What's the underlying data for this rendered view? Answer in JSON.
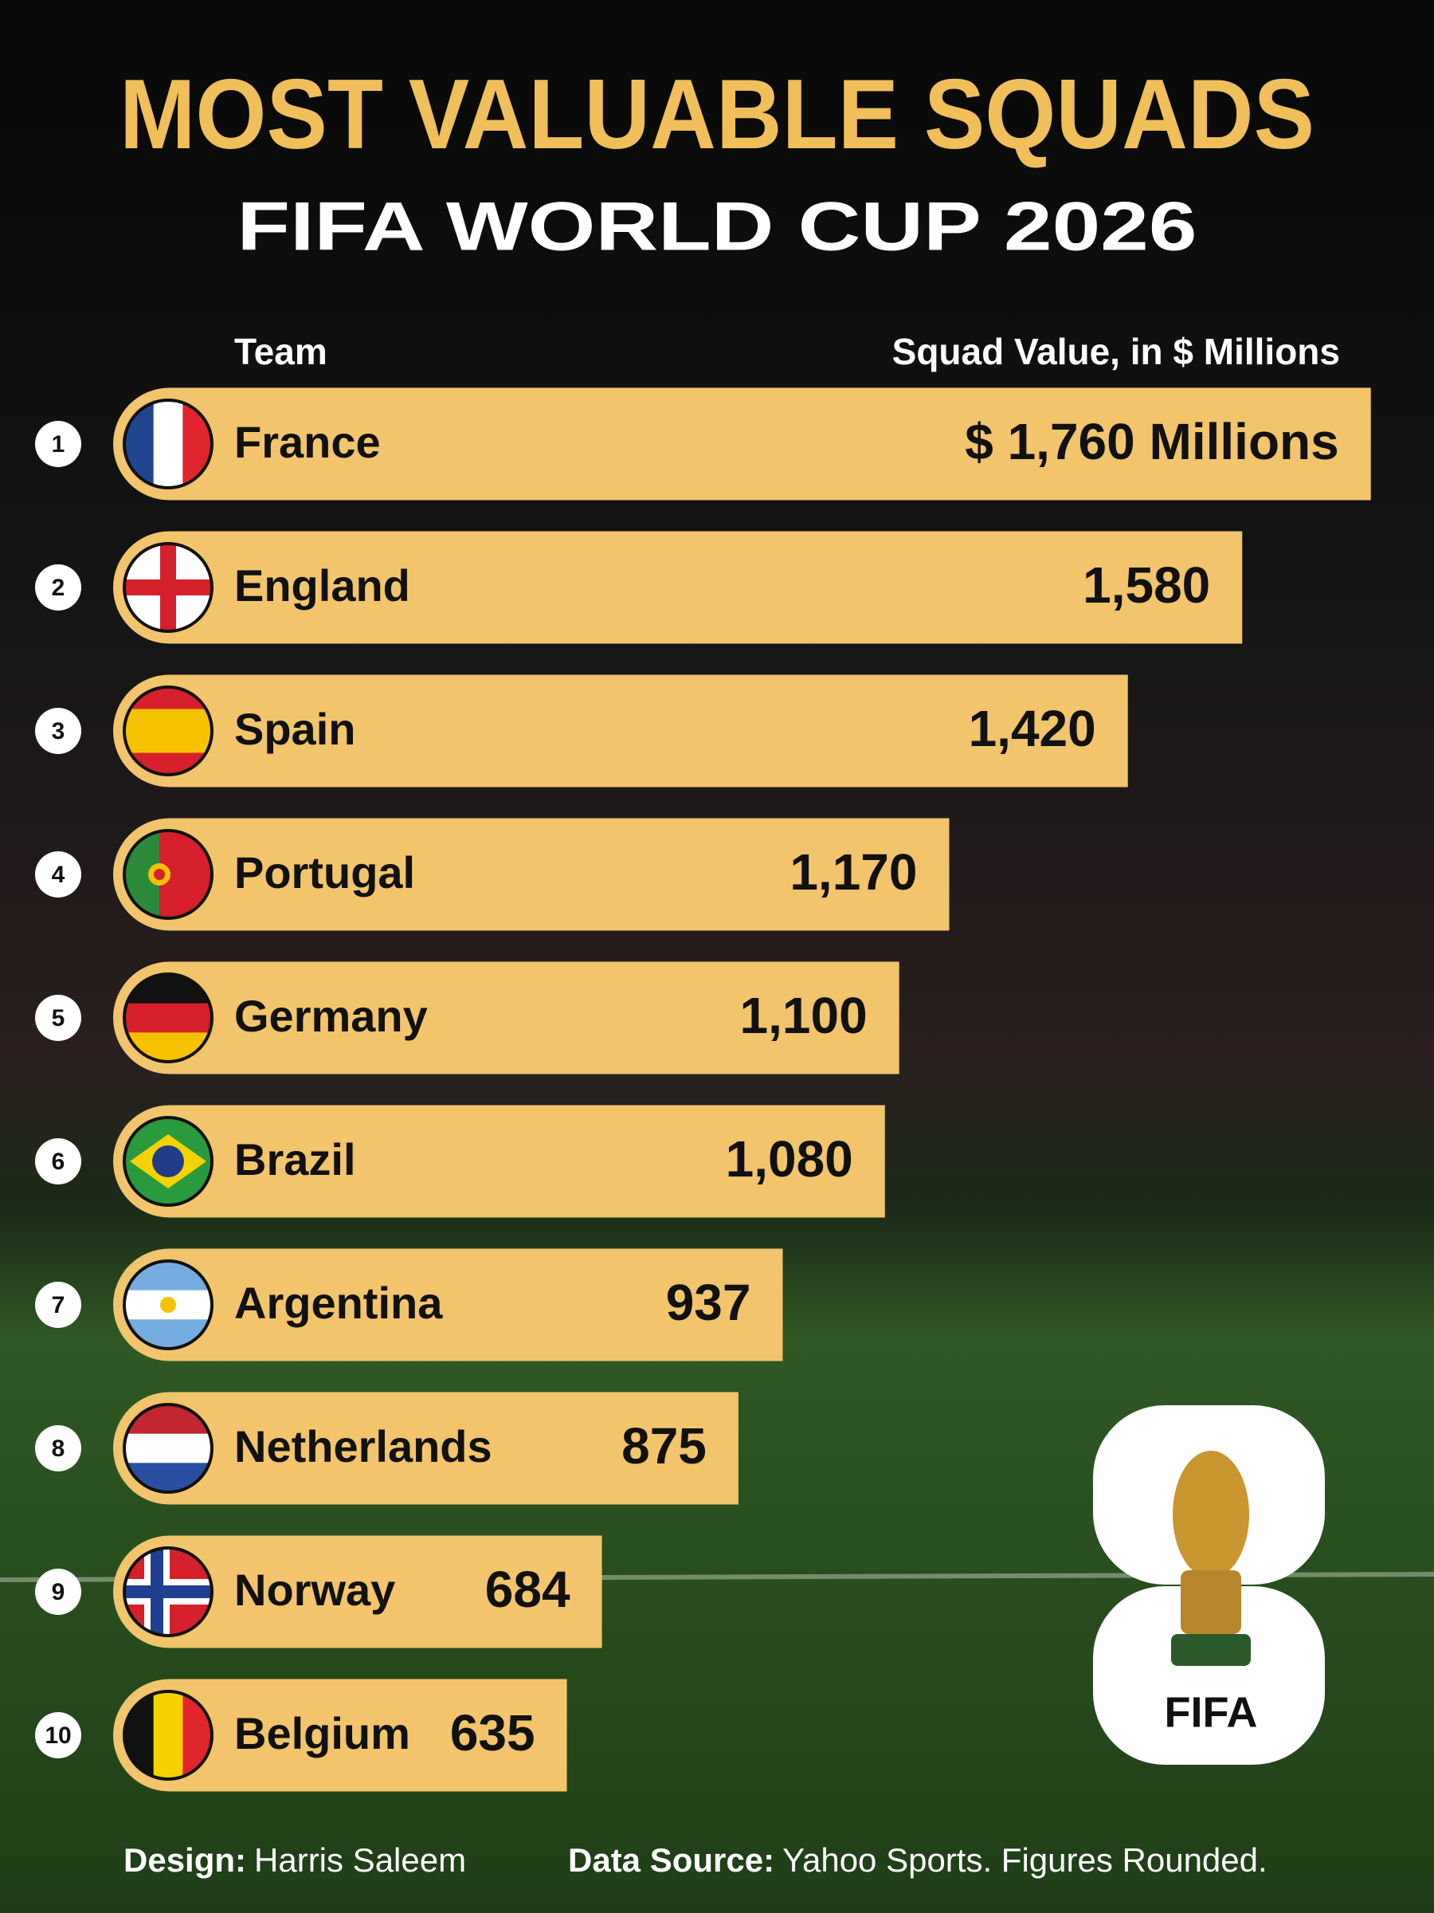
{
  "chart_data": {
    "type": "bar",
    "title": "MOST VALUABLE SQUADS",
    "subtitle": "FIFA WORLD CUP 2026",
    "category_header": "Team",
    "value_header": "Squad Value, in $ Millions",
    "ranks": [
      1,
      2,
      3,
      4,
      5,
      6,
      7,
      8,
      9,
      10
    ],
    "categories": [
      "France",
      "England",
      "Spain",
      "Portugal",
      "Germany",
      "Brazil",
      "Argentina",
      "Netherlands",
      "Norway",
      "Belgium"
    ],
    "values": [
      1760,
      1580,
      1420,
      1170,
      1100,
      1080,
      937,
      875,
      684,
      635
    ],
    "value_labels": [
      "$ 1,760 Millions",
      "1,580",
      "1,420",
      "1,170",
      "1,100",
      "1,080",
      "937",
      "875",
      "684",
      "635"
    ],
    "color": "#f2c46b"
  },
  "footer": {
    "design_label": "Design:",
    "designer": "Harris Saleem",
    "source_label": "Data Source:",
    "source": "Yahoo Sports. Figures Rounded."
  },
  "logo_text": "FIFA"
}
